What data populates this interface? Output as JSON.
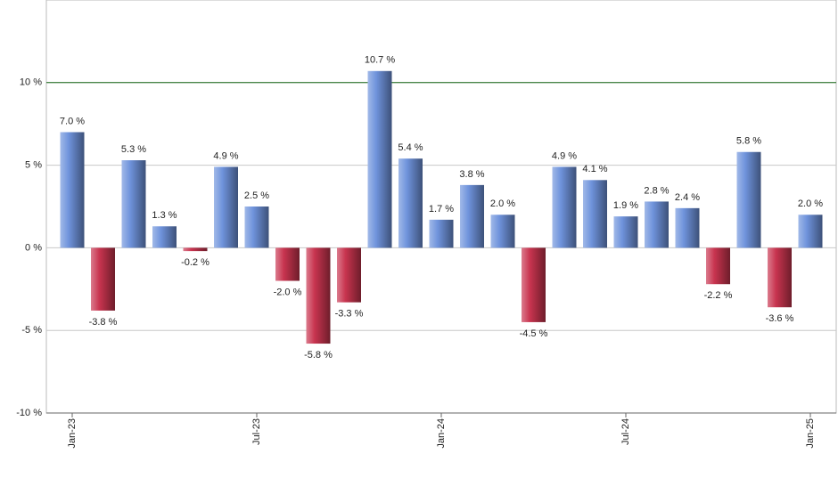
{
  "chart_data": {
    "type": "bar",
    "categories": [
      "Jan-23",
      null,
      null,
      null,
      null,
      null,
      "Jul-23",
      null,
      null,
      null,
      null,
      null,
      "Jan-24",
      null,
      null,
      null,
      null,
      null,
      "Jul-24",
      null,
      null,
      null,
      null,
      null,
      "Jan-25"
    ],
    "values": [
      7.0,
      -3.8,
      5.3,
      1.3,
      -0.2,
      4.9,
      2.5,
      -2.0,
      -5.8,
      -3.3,
      10.7,
      5.4,
      1.7,
      3.8,
      2.0,
      -4.5,
      4.9,
      4.1,
      1.9,
      2.8,
      2.4,
      -2.2,
      5.8,
      -3.6,
      2.0
    ],
    "value_labels": [
      "7.0 %",
      "-3.8 %",
      "5.3 %",
      "1.3 %",
      "-0.2 %",
      "4.9 %",
      "2.5 %",
      "-2.0 %",
      "-5.8 %",
      "-3.3 %",
      "10.7 %",
      "5.4 %",
      "1.7 %",
      "3.8 %",
      "2.0 %",
      "-4.5 %",
      "4.9 %",
      "4.1 %",
      "1.9 %",
      "2.8 %",
      "2.4 %",
      "-2.2 %",
      "5.8 %",
      "-3.6 %",
      "2.0 %"
    ],
    "positive_color": "#6f93dc",
    "negative_color": "#c8344f",
    "ylim": [
      -10,
      15
    ],
    "yticks": [
      {
        "value": -10,
        "label": "-10 %"
      },
      {
        "value": -5,
        "label": "-5 %"
      },
      {
        "value": 0,
        "label": "0 %"
      },
      {
        "value": 5,
        "label": "5 %"
      },
      {
        "value": 10,
        "label": "10 %"
      }
    ],
    "reference_line": {
      "value": 10,
      "color": "#1a6b1a"
    },
    "grid": true
  }
}
